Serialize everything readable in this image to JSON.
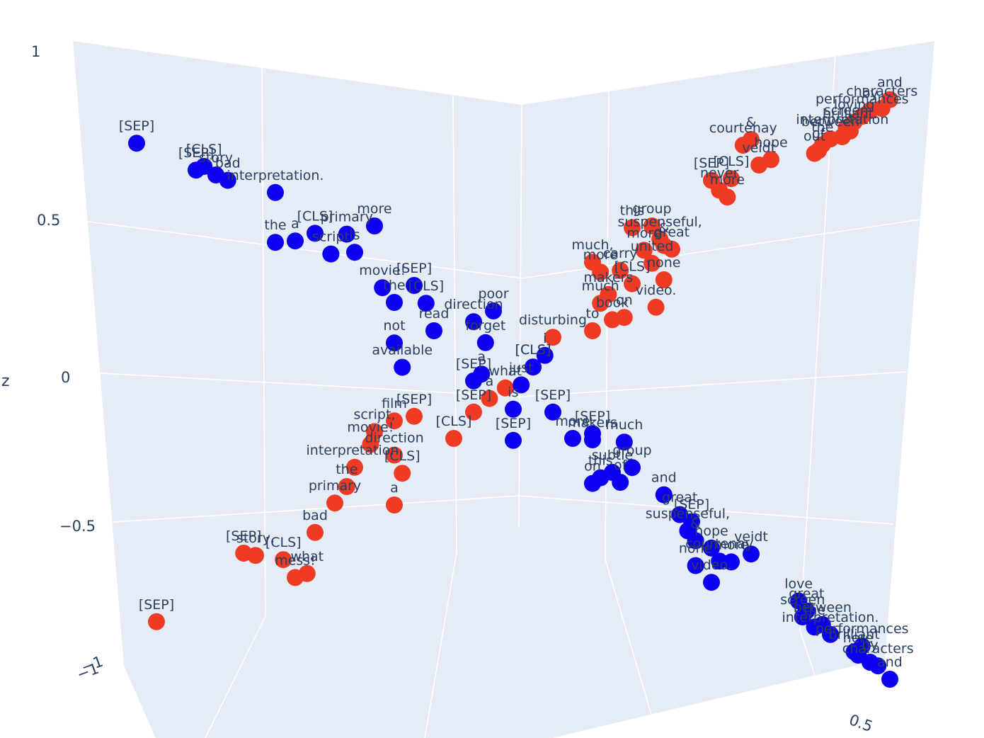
{
  "chart_data": {
    "type": "scatter3d",
    "axes": {
      "z": {
        "title": "z",
        "ticks": [
          "1",
          "0.5",
          "0",
          "−0.5"
        ]
      },
      "x": {
        "ticks": [
          "−1"
        ]
      },
      "y": {
        "ticks": [
          "−1",
          "0.5"
        ]
      }
    },
    "colors": {
      "red": "#ef3b24",
      "blue": "#0d00f0",
      "background": "#e5ecf6",
      "text": "#2a3f5f"
    },
    "series": [
      {
        "color": "red",
        "points": [
          {
            "label": "and",
            "x": -0.95,
            "y": 0.95,
            "z": 0.96
          },
          {
            "label": "characters",
            "x": -0.93,
            "y": 0.93,
            "z": 0.93
          },
          {
            "label": "by",
            "x": -0.9,
            "y": 0.9,
            "z": 0.92
          },
          {
            "label": "performances",
            "x": -0.88,
            "y": 0.88,
            "z": 0.9
          },
          {
            "label": "loving",
            "x": -0.86,
            "y": 0.86,
            "z": 0.88
          },
          {
            "label": "screen",
            "x": -0.84,
            "y": 0.84,
            "z": 0.86
          },
          {
            "label": "brilliant.",
            "x": -0.85,
            "y": 0.85,
            "z": 0.85
          },
          {
            "label": "interpretation",
            "x": -0.83,
            "y": 0.83,
            "z": 0.83
          },
          {
            "label": "between",
            "x": -0.8,
            "y": 0.8,
            "z": 0.82
          },
          {
            "label": "the",
            "x": -0.78,
            "y": 0.78,
            "z": 0.8
          },
          {
            "label": "of",
            "x": -0.77,
            "y": 0.77,
            "z": 0.78
          },
          {
            "label": "out",
            "x": -0.76,
            "y": 0.76,
            "z": 0.77
          },
          {
            "label": "&",
            "x": -0.6,
            "y": 0.6,
            "z": 0.8
          },
          {
            "label": "courtenay",
            "x": -0.58,
            "y": 0.58,
            "z": 0.78
          },
          {
            "label": "hope",
            "x": -0.65,
            "y": 0.65,
            "z": 0.74
          },
          {
            "label": "veidt",
            "x": -0.62,
            "y": 0.62,
            "z": 0.72
          },
          {
            "label": "[CLS]",
            "x": -0.55,
            "y": 0.55,
            "z": 0.67
          },
          {
            "label": "[SEP]",
            "x": -0.5,
            "y": 0.5,
            "z": 0.66
          },
          {
            "label": "never",
            "x": -0.52,
            "y": 0.52,
            "z": 0.63
          },
          {
            "label": "more",
            "x": -0.54,
            "y": 0.54,
            "z": 0.61
          },
          {
            "label": "group",
            "x": -0.35,
            "y": 0.35,
            "z": 0.5
          },
          {
            "label": "this",
            "x": -0.3,
            "y": 0.3,
            "z": 0.49
          },
          {
            "label": "suspenseful,",
            "x": -0.37,
            "y": 0.37,
            "z": 0.46
          },
          {
            "label": "&",
            "x": -0.38,
            "y": 0.38,
            "z": 0.44
          },
          {
            "label": "great",
            "x": -0.4,
            "y": 0.4,
            "z": 0.43
          },
          {
            "label": "more",
            "x": -0.33,
            "y": 0.33,
            "z": 0.42
          },
          {
            "label": "much,",
            "x": -0.2,
            "y": 0.2,
            "z": 0.37
          },
          {
            "label": "united",
            "x": -0.35,
            "y": 0.35,
            "z": 0.38
          },
          {
            "label": "carry",
            "x": -0.27,
            "y": 0.27,
            "z": 0.35
          },
          {
            "label": "more",
            "x": -0.22,
            "y": 0.22,
            "z": 0.34
          },
          {
            "label": "none",
            "x": -0.38,
            "y": 0.38,
            "z": 0.33
          },
          {
            "label": "[CLS]",
            "x": -0.3,
            "y": 0.3,
            "z": 0.31
          },
          {
            "label": "makers",
            "x": -0.24,
            "y": 0.24,
            "z": 0.27
          },
          {
            "label": "video.",
            "x": -0.36,
            "y": 0.36,
            "z": 0.24
          },
          {
            "label": "much",
            "x": -0.22,
            "y": 0.22,
            "z": 0.24
          },
          {
            "label": "on",
            "x": -0.28,
            "y": 0.28,
            "z": 0.2
          },
          {
            "label": "book",
            "x": -0.25,
            "y": 0.25,
            "z": 0.19
          },
          {
            "label": "to",
            "x": -0.2,
            "y": 0.2,
            "z": 0.15
          },
          {
            "label": "disturbing",
            "x": -0.1,
            "y": 0.1,
            "z": 0.12
          },
          {
            "label": "[CLS]",
            "x": -0.05,
            "y": 0.05,
            "z": 0.02
          },
          {
            "label": "what",
            "x": 0.02,
            "y": -0.02,
            "z": -0.05
          },
          {
            "label": "a",
            "x": 0.06,
            "y": -0.06,
            "z": -0.08
          },
          {
            "label": "[SEP]",
            "x": 0.1,
            "y": -0.1,
            "z": -0.12
          },
          {
            "label": "[CLS]",
            "x": 0.15,
            "y": -0.15,
            "z": -0.2
          },
          {
            "label": "[SEP]",
            "x": 0.25,
            "y": -0.25,
            "z": -0.12
          },
          {
            "label": "film",
            "x": 0.3,
            "y": -0.3,
            "z": -0.13
          },
          {
            "label": "script,",
            "x": 0.35,
            "y": -0.35,
            "z": -0.16
          },
          {
            "label": "movie!",
            "x": 0.36,
            "y": -0.36,
            "z": -0.2
          },
          {
            "label": "direction",
            "x": 0.3,
            "y": -0.3,
            "z": -0.24
          },
          {
            "label": "interpretation.",
            "x": 0.4,
            "y": -0.4,
            "z": -0.27
          },
          {
            "label": "[CLS]",
            "x": 0.28,
            "y": -0.28,
            "z": -0.3
          },
          {
            "label": "the",
            "x": 0.42,
            "y": -0.42,
            "z": -0.33
          },
          {
            "label": "a",
            "x": 0.3,
            "y": -0.3,
            "z": -0.4
          },
          {
            "label": "primary",
            "x": 0.45,
            "y": -0.45,
            "z": -0.38
          },
          {
            "label": "bad",
            "x": 0.5,
            "y": -0.5,
            "z": -0.47
          },
          {
            "label": "[CLS]",
            "x": 0.58,
            "y": -0.58,
            "z": -0.55
          },
          {
            "label": "story,",
            "x": 0.65,
            "y": -0.65,
            "z": -0.53
          },
          {
            "label": "[SEP]",
            "x": 0.68,
            "y": -0.68,
            "z": -0.52
          },
          {
            "label": "what",
            "x": 0.52,
            "y": -0.52,
            "z": -0.6
          },
          {
            "label": "mess!",
            "x": 0.55,
            "y": -0.55,
            "z": -0.61
          },
          {
            "label": "[SEP]",
            "x": 0.9,
            "y": -0.9,
            "z": -0.72
          }
        ]
      },
      {
        "color": "blue",
        "points": [
          {
            "label": "[SEP]",
            "x": 0.95,
            "y": -0.95,
            "z": 0.82
          },
          {
            "label": "[CLS]",
            "x": 0.78,
            "y": -0.78,
            "z": 0.73
          },
          {
            "label": "[SEP]",
            "x": 0.8,
            "y": -0.8,
            "z": 0.72
          },
          {
            "label": "story",
            "x": 0.75,
            "y": -0.75,
            "z": 0.7
          },
          {
            "label": "bad",
            "x": 0.72,
            "y": -0.72,
            "z": 0.68
          },
          {
            "label": "interpretation.",
            "x": 0.6,
            "y": -0.6,
            "z": 0.63
          },
          {
            "label": "more",
            "x": 0.35,
            "y": -0.35,
            "z": 0.5
          },
          {
            "label": "primary",
            "x": 0.42,
            "y": -0.42,
            "z": 0.48
          },
          {
            "label": "[CLS]",
            "x": 0.5,
            "y": -0.5,
            "z": 0.49
          },
          {
            "label": "a",
            "x": 0.55,
            "y": -0.55,
            "z": 0.47
          },
          {
            "label": "the",
            "x": 0.6,
            "y": -0.6,
            "z": 0.47
          },
          {
            "label": "is",
            "x": 0.4,
            "y": -0.4,
            "z": 0.42
          },
          {
            "label": "script",
            "x": 0.46,
            "y": -0.46,
            "z": 0.42
          },
          {
            "label": "[SEP]",
            "x": 0.25,
            "y": -0.25,
            "z": 0.3
          },
          {
            "label": "movie!",
            "x": 0.33,
            "y": -0.33,
            "z": 0.3
          },
          {
            "label": "[CLS]",
            "x": 0.22,
            "y": -0.22,
            "z": 0.24
          },
          {
            "label": "the",
            "x": 0.3,
            "y": -0.3,
            "z": 0.25
          },
          {
            "label": "poor",
            "x": 0.05,
            "y": -0.05,
            "z": 0.2
          },
          {
            "label": "direction",
            "x": 0.1,
            "y": -0.1,
            "z": 0.17
          },
          {
            "label": "read",
            "x": 0.2,
            "y": -0.2,
            "z": 0.15
          },
          {
            "label": "not",
            "x": 0.3,
            "y": -0.3,
            "z": 0.12
          },
          {
            "label": "available",
            "x": 0.28,
            "y": -0.28,
            "z": 0.04
          },
          {
            "label": "forget",
            "x": 0.07,
            "y": -0.07,
            "z": 0.1
          },
          {
            "label": "[CLS]",
            "x": -0.05,
            "y": 0.05,
            "z": 0.02
          },
          {
            "label": "a",
            "x": 0.08,
            "y": -0.08,
            "z": 0.0
          },
          {
            "label": "[SEP]",
            "x": 0.1,
            "y": -0.1,
            "z": -0.02
          },
          {
            "label": "i",
            "x": -0.08,
            "y": 0.08,
            "z": 0.06
          },
          {
            "label": "just",
            "x": -0.02,
            "y": 0.02,
            "z": -0.04
          },
          {
            "label": "[SEP]",
            "x": -0.1,
            "y": 0.1,
            "z": -0.12
          },
          {
            "label": "is",
            "x": 0.0,
            "y": 0.0,
            "z": -0.12
          },
          {
            "label": "much",
            "x": -0.28,
            "y": 0.28,
            "z": -0.2
          },
          {
            "label": "[SEP]",
            "x": -0.2,
            "y": 0.2,
            "z": -0.18
          },
          {
            "label": "makers",
            "x": -0.2,
            "y": 0.2,
            "z": -0.2
          },
          {
            "label": "more",
            "x": -0.15,
            "y": 0.15,
            "z": -0.2
          },
          {
            "label": "[SEP]",
            "x": 0.0,
            "y": 0.0,
            "z": -0.22
          },
          {
            "label": "group",
            "x": -0.3,
            "y": 0.3,
            "z": -0.28
          },
          {
            "label": "subtle",
            "x": -0.25,
            "y": 0.25,
            "z": -0.3
          },
          {
            "label": "of",
            "x": -0.27,
            "y": 0.27,
            "z": -0.33
          },
          {
            "label": "this",
            "x": -0.22,
            "y": 0.22,
            "z": -0.32
          },
          {
            "label": "on",
            "x": -0.2,
            "y": 0.2,
            "z": -0.34
          },
          {
            "label": "and",
            "x": -0.38,
            "y": 0.38,
            "z": -0.36
          },
          {
            "label": "great",
            "x": -0.42,
            "y": 0.42,
            "z": -0.42
          },
          {
            "label": "[SEP]",
            "x": -0.45,
            "y": 0.45,
            "z": -0.44
          },
          {
            "label": "suspenseful,",
            "x": -0.44,
            "y": 0.44,
            "z": -0.47
          },
          {
            "label": "&",
            "x": -0.46,
            "y": 0.46,
            "z": -0.5
          },
          {
            "label": "hope",
            "x": -0.5,
            "y": 0.5,
            "z": -0.52
          },
          {
            "label": "veidt",
            "x": -0.6,
            "y": 0.6,
            "z": -0.53
          },
          {
            "label": "more",
            "x": -0.55,
            "y": 0.55,
            "z": -0.56
          },
          {
            "label": "courtenay",
            "x": -0.52,
            "y": 0.52,
            "z": -0.56
          },
          {
            "label": "none",
            "x": -0.46,
            "y": 0.46,
            "z": -0.58
          },
          {
            "label": "video.",
            "x": -0.5,
            "y": 0.5,
            "z": -0.63
          },
          {
            "label": "love",
            "x": -0.72,
            "y": 0.72,
            "z": -0.67
          },
          {
            "label": "great",
            "x": -0.74,
            "y": 0.74,
            "z": -0.7
          },
          {
            "label": "screen",
            "x": -0.73,
            "y": 0.73,
            "z": -0.72
          },
          {
            "label": "between",
            "x": -0.78,
            "y": 0.78,
            "z": -0.74
          },
          {
            "label": "the",
            "x": -0.76,
            "y": 0.76,
            "z": -0.75
          },
          {
            "label": "interpretation.",
            "x": -0.8,
            "y": 0.8,
            "z": -0.77
          },
          {
            "label": "performances",
            "x": -0.88,
            "y": 0.88,
            "z": -0.8
          },
          {
            "label": "brilliant",
            "x": -0.86,
            "y": 0.86,
            "z": -0.82
          },
          {
            "label": "here",
            "x": -0.87,
            "y": 0.87,
            "z": -0.83
          },
          {
            "label": "characters",
            "x": -0.92,
            "y": 0.92,
            "z": -0.86
          },
          {
            "label": "by",
            "x": -0.9,
            "y": 0.9,
            "z": -0.85
          },
          {
            "label": "and",
            "x": -0.95,
            "y": 0.95,
            "z": -0.9
          }
        ]
      }
    ]
  }
}
